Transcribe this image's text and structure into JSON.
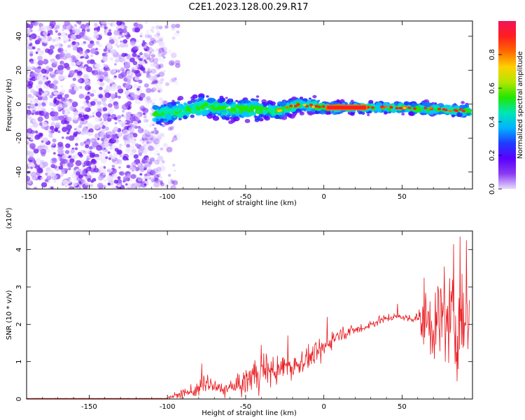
{
  "figure": {
    "title": "C2E1.2023.128.00.29.R17"
  },
  "chart_data": [
    {
      "type": "heatmap",
      "xlabel": "Height of straight line (km)",
      "ylabel": "Frequency (Hz)",
      "xlim": [
        -190,
        95
      ],
      "ylim": [
        -50,
        49
      ],
      "xticks": [
        -150,
        -100,
        -50,
        0,
        50
      ],
      "yticks": [
        -40,
        -20,
        0,
        20,
        40
      ],
      "colorbar": {
        "label": "Normalized spectral amplitude",
        "range": [
          0.0,
          1.0
        ],
        "ticks": [
          0.0,
          0.2,
          0.4,
          0.6,
          0.8
        ],
        "colormap": "rainbow: light violet, violet, blue, cyan, green, yellow, orange, red, magenta-red",
        "colors": [
          "#e8dcff",
          "#8a3cf0",
          "#5a00ff",
          "#1f3cff",
          "#00b4ff",
          "#00e6b4",
          "#22e600",
          "#b4e600",
          "#ffd000",
          "#ff6a00",
          "#ff1e1e",
          "#f0145a"
        ]
      },
      "features": {
        "noise_region_x": [
          -190,
          -105
        ],
        "ridge": [
          {
            "x": -108,
            "freq": -6
          },
          {
            "x": -90,
            "freq": -4
          },
          {
            "x": -75,
            "freq": -1
          },
          {
            "x": -60,
            "freq": -3
          },
          {
            "x": -45,
            "freq": -3
          },
          {
            "x": -30,
            "freq": -4
          },
          {
            "x": -15,
            "freq": 0
          },
          {
            "x": 0,
            "freq": -2
          },
          {
            "x": 25,
            "freq": -2
          },
          {
            "x": 50,
            "freq": -2
          },
          {
            "x": 75,
            "freq": -3
          },
          {
            "x": 93,
            "freq": -4
          }
        ],
        "peak_segment_x": [
          2,
          27
        ],
        "peak_segment_freq": -2
      }
    },
    {
      "type": "line",
      "xlabel": "Height of straight line (km)",
      "ylabel": "SNR (10 * v/v)",
      "yscale_label": "(x10⁴)",
      "xlim": [
        -190,
        95
      ],
      "ylim": [
        0,
        4.5
      ],
      "xticks": [
        -150,
        -100,
        -50,
        0,
        50
      ],
      "yticks": [
        0,
        1,
        2,
        3,
        4
      ],
      "series_color": "#e8191e",
      "series": [
        {
          "x": [
            -190,
            -150,
            -120,
            -100,
            -90,
            -80,
            -75,
            -70,
            -65,
            -60,
            -55,
            -50,
            -45,
            -40,
            -35,
            -30,
            -25,
            -20,
            -15,
            -10,
            -5,
            0,
            5,
            10,
            15,
            20,
            25,
            30,
            35,
            40,
            45,
            50,
            55,
            60,
            62,
            65,
            70,
            75,
            80,
            85,
            90,
            93
          ],
          "y": [
            0.0,
            0.0,
            0.01,
            0.03,
            0.15,
            0.25,
            0.45,
            0.3,
            0.25,
            0.3,
            0.35,
            0.45,
            0.65,
            0.75,
            0.8,
            0.7,
            0.9,
            0.85,
            1.0,
            1.1,
            1.2,
            1.35,
            1.6,
            1.75,
            1.8,
            1.85,
            1.9,
            2.0,
            2.1,
            2.15,
            2.2,
            2.2,
            2.15,
            2.2,
            2.0,
            2.1,
            2.0,
            2.1,
            2.05,
            2.0,
            2.05,
            2.0
          ],
          "spread": [
            0.0,
            0.0,
            0.01,
            0.03,
            0.2,
            0.3,
            0.4,
            0.3,
            0.3,
            0.3,
            0.4,
            0.6,
            0.8,
            0.8,
            0.7,
            0.6,
            0.5,
            0.6,
            0.5,
            0.4,
            0.5,
            0.4,
            0.4,
            0.3,
            0.25,
            0.2,
            0.2,
            0.2,
            0.2,
            0.15,
            0.15,
            0.15,
            0.15,
            0.3,
            0.9,
            1.2,
            1.5,
            1.8,
            2.0,
            2.2,
            2.1,
            1.9
          ],
          "peaks": [
            {
              "x": -78,
              "y": 0.95
            },
            {
              "x": -40,
              "y": 1.45
            },
            {
              "x": -23,
              "y": 1.7
            },
            {
              "x": 2,
              "y": 2.2
            },
            {
              "x": 47,
              "y": 2.55
            },
            {
              "x": 64,
              "y": 3.25
            },
            {
              "x": 77,
              "y": 3.55
            },
            {
              "x": 83,
              "y": 4.15
            },
            {
              "x": 87,
              "y": 4.35
            },
            {
              "x": 91,
              "y": 4.25
            }
          ]
        }
      ]
    }
  ]
}
